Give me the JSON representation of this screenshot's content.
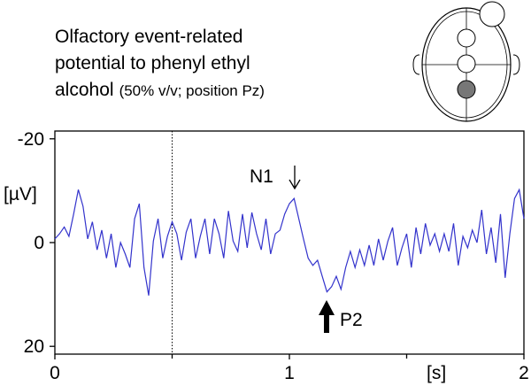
{
  "chart_data": {
    "type": "line",
    "title_lines": [
      "Olfactory event-related",
      "potential to phenyl ethyl",
      "alcohol"
    ],
    "subtitle": "(50% v/v; position Pz)",
    "y_label": "[µV]",
    "x_label": "[s]",
    "annotations": [
      "N1",
      "P2"
    ],
    "color": "#3333cc",
    "y_inverted": true,
    "xlim": [
      0,
      2
    ],
    "xticks": [
      0,
      1,
      2
    ],
    "xminor_ticks": [
      0.5,
      1.5
    ],
    "ylim": [
      -21.5,
      21.5
    ],
    "yticks": [
      -20,
      0,
      20
    ],
    "vline": 0.5,
    "x": [
      0,
      0.02,
      0.04,
      0.06,
      0.08,
      0.1,
      0.12,
      0.14,
      0.16,
      0.18,
      0.2,
      0.22,
      0.24,
      0.26,
      0.28,
      0.3,
      0.32,
      0.34,
      0.36,
      0.38,
      0.4,
      0.42,
      0.44,
      0.46,
      0.48,
      0.5,
      0.52,
      0.54,
      0.56,
      0.58,
      0.6,
      0.62,
      0.64,
      0.66,
      0.68,
      0.7,
      0.72,
      0.74,
      0.76,
      0.78,
      0.8,
      0.82,
      0.84,
      0.86,
      0.88,
      0.9,
      0.92,
      0.94,
      0.96,
      0.98,
      1,
      1.02,
      1.04,
      1.06,
      1.08,
      1.1,
      1.12,
      1.14,
      1.16,
      1.18,
      1.2,
      1.22,
      1.24,
      1.26,
      1.28,
      1.3,
      1.32,
      1.34,
      1.36,
      1.38,
      1.4,
      1.42,
      1.44,
      1.46,
      1.48,
      1.5,
      1.52,
      1.54,
      1.56,
      1.58,
      1.6,
      1.62,
      1.64,
      1.66,
      1.68,
      1.7,
      1.72,
      1.74,
      1.76,
      1.78,
      1.8,
      1.82,
      1.84,
      1.86,
      1.88,
      1.9,
      1.92,
      1.94,
      1.96,
      1.98,
      2
    ],
    "values": [
      -0.7,
      -1.7,
      -3,
      -1.2,
      -5.5,
      -10.2,
      -7,
      -0.7,
      -4,
      1.4,
      -2.4,
      3,
      -1.7,
      4.8,
      0,
      2.2,
      4.8,
      -4.6,
      -7.5,
      4.8,
      10.2,
      -0.3,
      -4.6,
      3,
      -1.2,
      -4,
      -1.7,
      3.4,
      -2,
      -4.6,
      3,
      -1.2,
      -4.6,
      2.2,
      -4.6,
      -1.7,
      3,
      -6.1,
      -0.3,
      1.7,
      -5.5,
      1,
      -5.8,
      -1.7,
      1.4,
      -4.6,
      2.2,
      -1.7,
      -2.4,
      -5.5,
      -7.5,
      -8.5,
      -4.6,
      -0.7,
      3,
      4.4,
      3.4,
      6.5,
      9.5,
      8.5,
      6.5,
      9,
      4.8,
      1.7,
      4.8,
      1.4,
      4.4,
      0.5,
      4.4,
      -0.7,
      3.4,
      -0.3,
      -2.9,
      4.4,
      1,
      -1.7,
      4.8,
      -2.9,
      2.2,
      -3.7,
      0.5,
      -1.7,
      1.7,
      -1.7,
      1.7,
      -3.7,
      4.4,
      -1.2,
      1,
      -2.4,
      0,
      -6.3,
      2.2,
      -2.9,
      3.9,
      -5.5,
      6.8,
      -1.7,
      -8.5,
      -10.2,
      -4.6
    ]
  }
}
